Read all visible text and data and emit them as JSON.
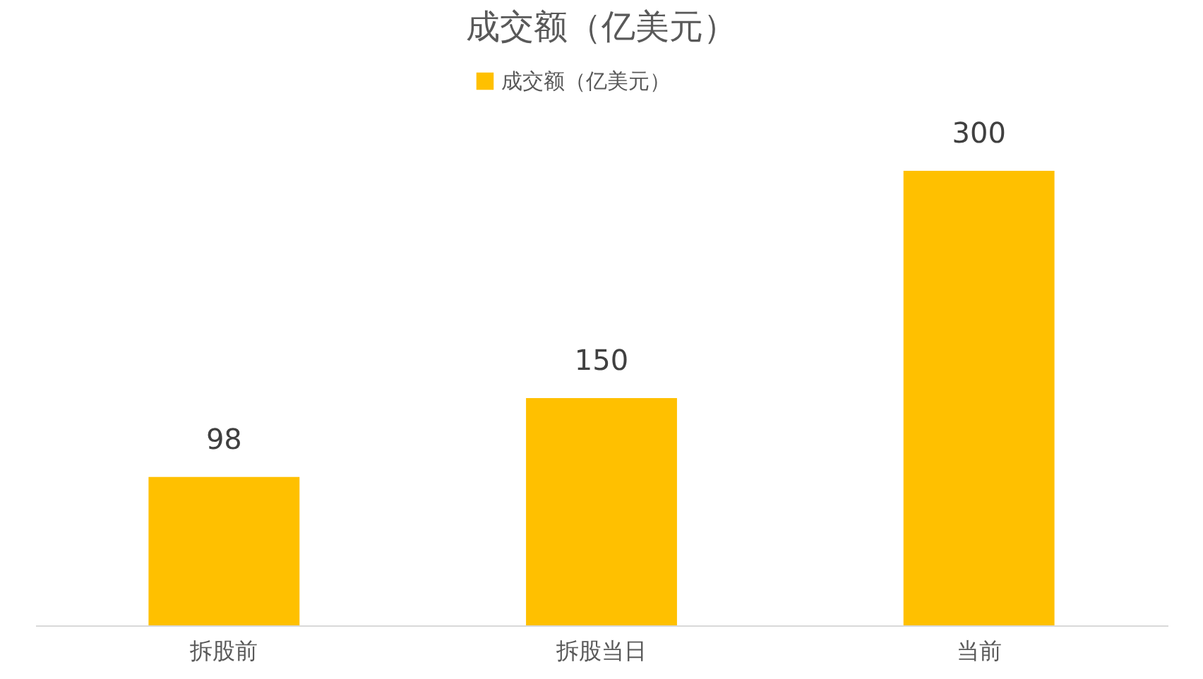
{
  "chart_data": {
    "type": "bar",
    "title": "成交额（亿美元）",
    "categories": [
      "拆股前",
      "拆股当日",
      "当前"
    ],
    "series": [
      {
        "name": "成交额（亿美元）",
        "color": "#ffc000",
        "values": [
          98,
          150,
          300
        ]
      }
    ],
    "data_labels": true,
    "legend": "top",
    "grid": false
  }
}
